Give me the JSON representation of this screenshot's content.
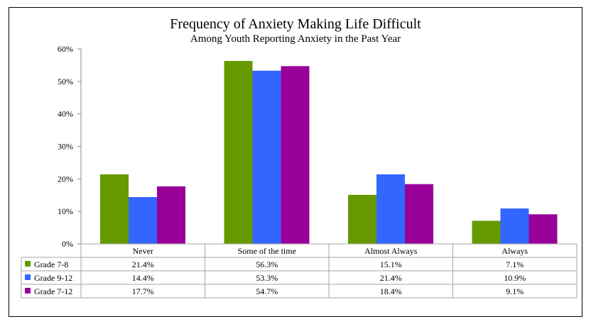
{
  "chart_data": {
    "type": "bar",
    "title": "Frequency of Anxiety Making Life Difficult",
    "subtitle": "Among Youth Reporting Anxiety in the Past Year",
    "categories": [
      "Never",
      "Some of the time",
      "Almost Always",
      "Always"
    ],
    "series": [
      {
        "name": "Grade  7-8",
        "color": "#669900",
        "values": [
          21.4,
          56.3,
          15.1,
          7.1
        ]
      },
      {
        "name": "Grade  9-12",
        "color": "#3366FF",
        "values": [
          14.4,
          53.3,
          21.4,
          10.9
        ]
      },
      {
        "name": "Grade  7-12",
        "color": "#990099",
        "values": [
          17.7,
          54.7,
          18.4,
          9.1
        ]
      }
    ],
    "table_values": [
      [
        "21.4%",
        "56.3%",
        "15.1%",
        "7.1%"
      ],
      [
        "14.4%",
        "53.3%",
        "21.4%",
        "10.9%"
      ],
      [
        "17.7%",
        "54.7%",
        "18.4%",
        "9.1%"
      ]
    ],
    "y_ticks": [
      "0%",
      "10%",
      "20%",
      "30%",
      "40%",
      "50%",
      "60%"
    ],
    "ylim": [
      0,
      60
    ],
    "grid": false,
    "legend": "data-table"
  }
}
